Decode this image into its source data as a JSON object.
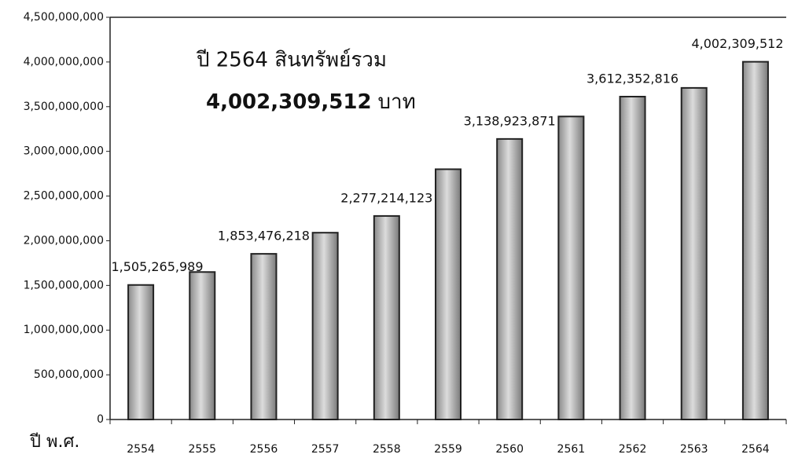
{
  "chart_data": {
    "type": "bar",
    "annotations": [
      "ปี 2564 สินทรัพย์รวม",
      "4,002,309,512",
      "บาท"
    ],
    "x_label": "ปี พ.ศ.",
    "categories": [
      "2554",
      "2555",
      "2556",
      "2557",
      "2558",
      "2559",
      "2560",
      "2561",
      "2562",
      "2563",
      "2564"
    ],
    "values": [
      1505265989,
      1650000000,
      1853476218,
      2090000000,
      2277214123,
      2800000000,
      3138923871,
      3390000000,
      3612352816,
      3710000000,
      4002309512
    ],
    "value_labels": [
      "1,505,265,989",
      null,
      "1,853,476,218",
      null,
      "2,277,214,123",
      null,
      "3,138,923,871",
      null,
      "3,612,352,816",
      null,
      "4,002,309,512"
    ],
    "color": "#b8b8b8",
    "ylim": [
      0,
      4500000000
    ],
    "yticks": [
      0,
      {
        "value": 500000000,
        "label": "500,000,000"
      },
      {
        "value": 1000000000,
        "label": "1,000,000,000"
      },
      {
        "value": 1500000000,
        "label": "1,500,000,000"
      },
      {
        "value": 2000000000,
        "label": "2,000,000,000"
      },
      {
        "value": 2500000000,
        "label": "2,500,000,000"
      },
      {
        "value": 3000000000,
        "label": "3,000,000,000"
      },
      {
        "value": 3500000000,
        "label": "3,500,000,000"
      },
      {
        "value": 4000000000,
        "label": "4,000,000,000"
      },
      {
        "value": 4500000000,
        "label": "4,500,000,000"
      }
    ],
    "grid": false
  }
}
